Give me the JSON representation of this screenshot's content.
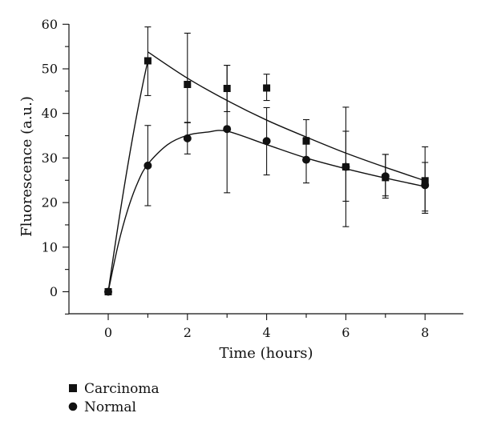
{
  "chart_data": {
    "type": "scatter",
    "xlabel": "Time (hours)",
    "ylabel": "Fluorescence (a.u.)",
    "xlim": [
      -1,
      9
    ],
    "ylim": [
      -5,
      60
    ],
    "x_ticks": [
      0,
      2,
      4,
      6,
      8
    ],
    "y_ticks": [
      0,
      10,
      20,
      30,
      40,
      50,
      60
    ],
    "grid": false,
    "legend_position": "bottom-left",
    "series": [
      {
        "name": "Carcinoma",
        "marker": "square",
        "x": [
          0,
          1,
          2,
          3,
          4,
          5,
          6,
          7,
          8
        ],
        "y": [
          0,
          51.8,
          46.5,
          45.6,
          45.7,
          33.8,
          28.0,
          25.6,
          24.9
        ],
        "err_low": [
          0,
          7.8,
          8.6,
          5.2,
          2.8,
          3.8,
          7.7,
          4.6,
          6.8
        ],
        "err_high": [
          0,
          7.6,
          11.5,
          5.2,
          3.1,
          4.8,
          13.4,
          5.2,
          7.6
        ],
        "fit": [
          [
            1,
            53.8
          ],
          [
            2,
            47.9
          ],
          [
            3,
            42.9
          ],
          [
            4,
            38.5
          ],
          [
            5,
            34.7
          ],
          [
            6,
            31.1
          ],
          [
            7,
            27.9
          ],
          [
            8,
            24.9
          ]
        ]
      },
      {
        "name": "Normal",
        "marker": "circle",
        "x": [
          0,
          1,
          2,
          3,
          4,
          5,
          6,
          7,
          8
        ],
        "y": [
          0,
          28.3,
          34.4,
          36.5,
          33.8,
          29.6,
          28.0,
          25.9,
          23.9
        ],
        "err_low": [
          0,
          9.0,
          3.5,
          14.3,
          7.6,
          5.2,
          13.4,
          4.4,
          6.3
        ],
        "err_high": [
          0,
          9.0,
          3.6,
          14.3,
          7.5,
          5.0,
          8.0,
          4.9,
          5.1
        ],
        "fit": [
          [
            0,
            0
          ],
          [
            0.25,
            10.5
          ],
          [
            0.5,
            18.6
          ],
          [
            0.75,
            24.6
          ],
          [
            1,
            28.6
          ],
          [
            1.5,
            33.0
          ],
          [
            2,
            35.1
          ],
          [
            2.5,
            35.8
          ],
          [
            3,
            36.0
          ],
          [
            4,
            33.0
          ],
          [
            5,
            30.0
          ],
          [
            6,
            27.6
          ],
          [
            7,
            25.5
          ],
          [
            8,
            23.6
          ]
        ]
      }
    ]
  }
}
